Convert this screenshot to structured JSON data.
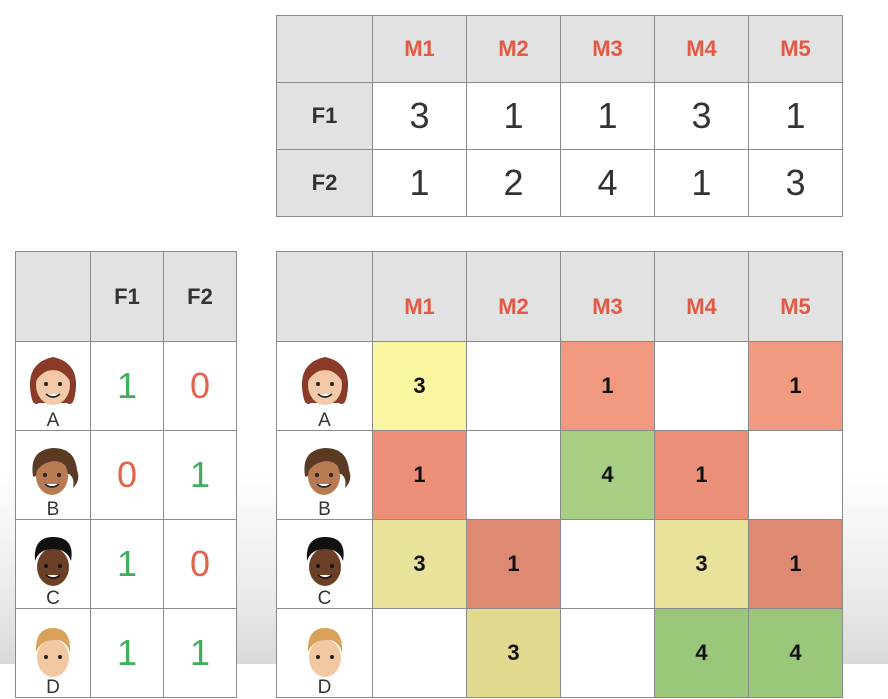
{
  "movies": [
    "M1",
    "M2",
    "M3",
    "M4",
    "M5"
  ],
  "features": [
    "F1",
    "F2"
  ],
  "movie_features": [
    {
      "feature": "F1",
      "values": [
        "3",
        "1",
        "1",
        "3",
        "1"
      ]
    },
    {
      "feature": "F2",
      "values": [
        "1",
        "2",
        "4",
        "1",
        "3"
      ]
    }
  ],
  "users": [
    {
      "name": "A",
      "f1": "1",
      "f2": "0",
      "ratings": [
        "3",
        "",
        "1",
        "",
        "1"
      ]
    },
    {
      "name": "B",
      "f1": "0",
      "f2": "1",
      "ratings": [
        "1",
        "",
        "4",
        "1",
        ""
      ]
    },
    {
      "name": "C",
      "f1": "1",
      "f2": "0",
      "ratings": [
        "3",
        "1",
        "",
        "3",
        "1"
      ]
    },
    {
      "name": "D",
      "f1": "1",
      "f2": "1",
      "ratings": [
        "",
        "3",
        "",
        "4",
        "4"
      ]
    }
  ],
  "colors": {
    "header_bg": "#e2e2e2",
    "movie_header": "#e15a45",
    "green": "#3fae5c",
    "red": "#e2634b",
    "rating_yellow": "#faf5a0",
    "rating_salmon": "#f29a80",
    "rating_green": "#a9cf85",
    "rating_olive": "#e8e29a",
    "rating_brick": "#de8a72",
    "rating_dkgreen": "#9ac77a"
  }
}
